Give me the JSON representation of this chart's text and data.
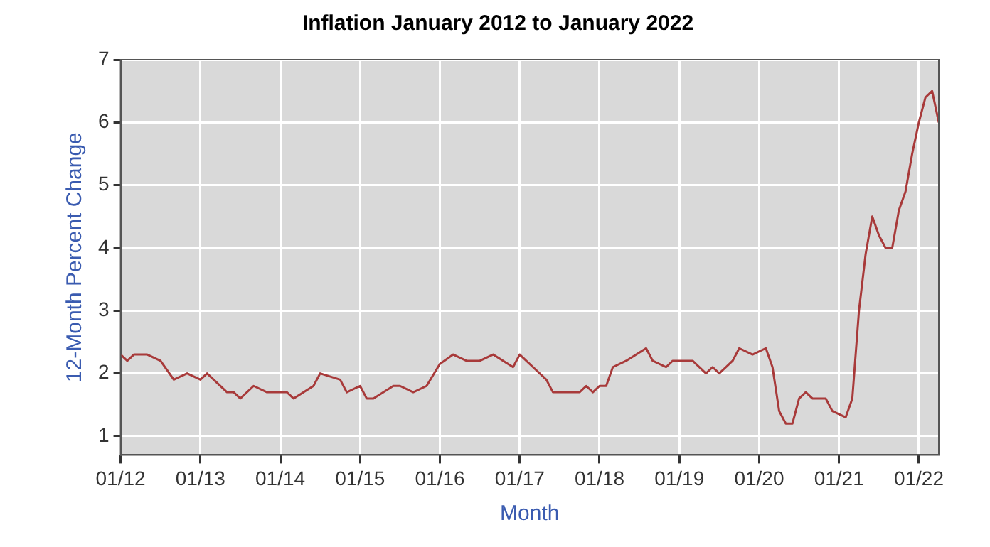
{
  "chart_data": {
    "type": "line",
    "title": "Inflation January 2012 to January 2022",
    "xlabel": "Month",
    "ylabel": "12-Month Percent Change",
    "x": [
      "2012-01",
      "2012-02",
      "2012-03",
      "2012-05",
      "2012-07",
      "2012-09",
      "2012-11",
      "2013-01",
      "2013-02",
      "2013-05",
      "2013-06",
      "2013-07",
      "2013-09",
      "2013-11",
      "2014-02",
      "2014-03",
      "2014-06",
      "2014-07",
      "2014-10",
      "2014-11",
      "2015-01",
      "2015-02",
      "2015-03",
      "2015-06",
      "2015-07",
      "2015-09",
      "2015-11",
      "2016-01",
      "2016-03",
      "2016-05",
      "2016-07",
      "2016-09",
      "2016-12",
      "2017-01",
      "2017-03",
      "2017-05",
      "2017-06",
      "2017-10",
      "2017-11",
      "2017-12",
      "2018-01",
      "2018-02",
      "2018-03",
      "2018-05",
      "2018-08",
      "2018-09",
      "2018-11",
      "2018-12",
      "2019-03",
      "2019-05",
      "2019-06",
      "2019-07",
      "2019-09",
      "2019-10",
      "2019-12",
      "2020-02",
      "2020-03",
      "2020-04",
      "2020-05",
      "2020-06",
      "2020-07",
      "2020-08",
      "2020-09",
      "2020-11",
      "2020-12",
      "2021-02",
      "2021-03",
      "2021-04",
      "2021-05",
      "2021-06",
      "2021-07",
      "2021-08",
      "2021-09",
      "2021-10",
      "2021-11",
      "2021-12",
      "2022-01",
      "2022-02",
      "2022-03",
      "2022-04"
    ],
    "series": [
      {
        "color": "#a83a3a",
        "values": [
          2.3,
          2.2,
          2.3,
          2.3,
          2.2,
          1.9,
          2.0,
          1.9,
          2.0,
          1.7,
          1.7,
          1.6,
          1.8,
          1.7,
          1.7,
          1.6,
          1.8,
          2.0,
          1.9,
          1.7,
          1.8,
          1.6,
          1.6,
          1.8,
          1.8,
          1.7,
          1.8,
          2.15,
          2.3,
          2.2,
          2.2,
          2.3,
          2.1,
          2.3,
          2.1,
          1.9,
          1.7,
          1.7,
          1.8,
          1.7,
          1.8,
          1.8,
          2.1,
          2.2,
          2.4,
          2.2,
          2.1,
          2.2,
          2.2,
          2.0,
          2.1,
          2.0,
          2.2,
          2.4,
          2.3,
          2.4,
          2.1,
          1.4,
          1.2,
          1.2,
          1.6,
          1.7,
          1.6,
          1.6,
          1.4,
          1.3,
          1.6,
          3.0,
          3.9,
          4.5,
          4.2,
          4.0,
          4.0,
          4.6,
          4.9,
          5.5,
          6.0,
          6.4,
          6.5,
          6.0
        ]
      }
    ],
    "xlim": [
      "2012-01",
      "2022-04"
    ],
    "xticks": [
      {
        "value": "2012-01",
        "label": "01/12"
      },
      {
        "value": "2013-01",
        "label": "01/13"
      },
      {
        "value": "2014-01",
        "label": "01/14"
      },
      {
        "value": "2015-01",
        "label": "01/15"
      },
      {
        "value": "2016-01",
        "label": "01/16"
      },
      {
        "value": "2017-01",
        "label": "01/17"
      },
      {
        "value": "2018-01",
        "label": "01/18"
      },
      {
        "value": "2019-01",
        "label": "01/19"
      },
      {
        "value": "2020-01",
        "label": "01/20"
      },
      {
        "value": "2021-01",
        "label": "01/21"
      },
      {
        "value": "2022-01",
        "label": "01/22"
      }
    ],
    "ylim": [
      0.7,
      7
    ],
    "yticks": [
      1,
      2,
      3,
      4,
      5,
      6,
      7
    ],
    "grid": true,
    "legend": false,
    "marker": "none",
    "line_style": "solid"
  }
}
